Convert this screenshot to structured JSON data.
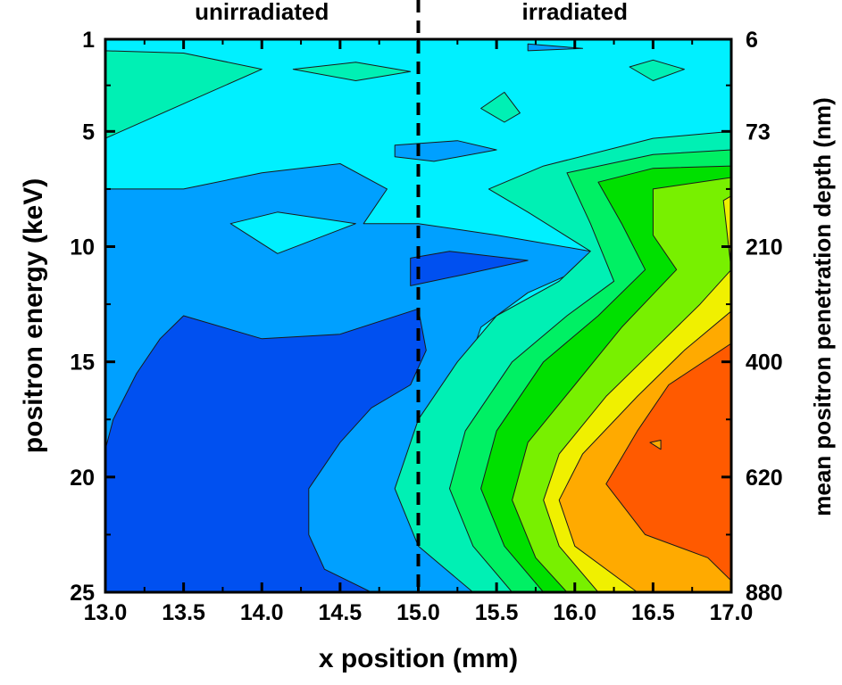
{
  "chart_data": {
    "type": "heatmap",
    "title": "",
    "xlabel": "x position (mm)",
    "ylabel": "positron energy (keV)",
    "y2label": "mean positron penetration depth (nm)",
    "xlim": [
      13.0,
      17.0
    ],
    "ylim": [
      1,
      25
    ],
    "y_axis_inverted": true,
    "x_ticks": [
      "13.0",
      "13.5",
      "14.0",
      "14.5",
      "15.0",
      "15.5",
      "16.0",
      "16.5",
      "17.0"
    ],
    "x_tick_values": [
      13.0,
      13.5,
      14.0,
      14.5,
      15.0,
      15.5,
      16.0,
      16.5,
      17.0
    ],
    "y_ticks": [
      "1",
      "5",
      "10",
      "15",
      "20",
      "25"
    ],
    "y_tick_values": [
      1,
      5,
      10,
      15,
      20,
      25
    ],
    "y2_ticks": [
      "6",
      "73",
      "210",
      "400",
      "620",
      "880"
    ],
    "y2_tick_values": [
      1,
      5,
      10,
      15,
      20,
      25
    ],
    "boundary_x": 15.0,
    "region_labels": [
      {
        "text": "unirradiated",
        "x": 14.0
      },
      {
        "text": "irradiated",
        "x": 16.0
      }
    ],
    "color_levels": [
      {
        "level": 1,
        "color": "#0050f0"
      },
      {
        "level": 2,
        "color": "#00a0ff"
      },
      {
        "level": 3,
        "color": "#00f0ff"
      },
      {
        "level": 4,
        "color": "#00f0b4"
      },
      {
        "level": 5,
        "color": "#00f064"
      },
      {
        "level": 6,
        "color": "#00e000"
      },
      {
        "level": 7,
        "color": "#78f000"
      },
      {
        "level": 8,
        "color": "#f0f000"
      },
      {
        "level": 9,
        "color": "#ffaa00"
      },
      {
        "level": 10,
        "color": "#ff5a00"
      }
    ],
    "contour_regions": [
      {
        "level": 3,
        "polygon": [
          [
            13.0,
            1
          ],
          [
            17.0,
            1
          ],
          [
            17.0,
            25
          ],
          [
            13.0,
            25
          ]
        ]
      },
      {
        "level": 4,
        "polygon": [
          [
            13.0,
            1.5
          ],
          [
            13.5,
            1.6
          ],
          [
            14.0,
            2.3
          ],
          [
            13.5,
            3.8
          ],
          [
            13.0,
            5.3
          ]
        ]
      },
      {
        "level": 4,
        "polygon": [
          [
            14.2,
            2.3
          ],
          [
            14.6,
            2.0
          ],
          [
            14.95,
            2.4
          ],
          [
            14.6,
            2.8
          ]
        ]
      },
      {
        "level": 4,
        "polygon": [
          [
            16.35,
            2.2
          ],
          [
            16.5,
            1.9
          ],
          [
            16.7,
            2.3
          ],
          [
            16.5,
            2.8
          ]
        ]
      },
      {
        "level": 4,
        "polygon": [
          [
            15.4,
            4.0
          ],
          [
            15.55,
            3.3
          ],
          [
            15.65,
            4.2
          ],
          [
            15.55,
            4.6
          ]
        ]
      },
      {
        "level": 2,
        "polygon": [
          [
            15.7,
            1.2
          ],
          [
            16.05,
            1.4
          ],
          [
            15.7,
            1.5
          ]
        ]
      },
      {
        "level": 2,
        "polygon": [
          [
            14.85,
            5.6
          ],
          [
            15.25,
            5.4
          ],
          [
            15.5,
            5.8
          ],
          [
            15.1,
            6.3
          ],
          [
            14.85,
            6.1
          ]
        ]
      },
      {
        "level": 2,
        "polygon": [
          [
            13.0,
            7.5
          ],
          [
            13.5,
            7.5
          ],
          [
            14.0,
            6.8
          ],
          [
            14.5,
            6.4
          ],
          [
            14.8,
            7.5
          ],
          [
            14.65,
            9.0
          ],
          [
            15.0,
            9.0
          ],
          [
            15.5,
            9.5
          ],
          [
            16.1,
            10.2
          ],
          [
            16.2,
            10.5
          ],
          [
            15.7,
            12.0
          ],
          [
            15.4,
            13.5
          ],
          [
            15.3,
            15.5
          ],
          [
            15.1,
            17.5
          ],
          [
            15.0,
            19.0
          ],
          [
            15.1,
            21.5
          ],
          [
            15.3,
            24.0
          ],
          [
            15.5,
            25
          ],
          [
            13.0,
            25
          ]
        ]
      },
      {
        "level": 3,
        "polygon": [
          [
            13.8,
            9.0
          ],
          [
            14.1,
            8.5
          ],
          [
            14.6,
            9.0
          ],
          [
            14.1,
            10.3
          ]
        ]
      },
      {
        "level": 1,
        "polygon": [
          [
            14.95,
            10.5
          ],
          [
            15.2,
            10.2
          ],
          [
            15.7,
            10.6
          ],
          [
            15.3,
            11.2
          ],
          [
            14.95,
            11.7
          ]
        ]
      },
      {
        "level": 1,
        "polygon": [
          [
            13.0,
            18.8
          ],
          [
            13.05,
            17.5
          ],
          [
            13.2,
            15.5
          ],
          [
            13.35,
            14.0
          ],
          [
            13.5,
            13.0
          ],
          [
            14.0,
            14.0
          ],
          [
            14.5,
            13.8
          ],
          [
            15.0,
            12.7
          ],
          [
            15.05,
            14.5
          ],
          [
            14.95,
            16.0
          ],
          [
            14.7,
            17.0
          ],
          [
            14.5,
            18.5
          ],
          [
            14.3,
            20.5
          ],
          [
            14.3,
            22.5
          ],
          [
            14.4,
            24.0
          ],
          [
            14.7,
            25
          ],
          [
            13.0,
            25
          ]
        ]
      },
      {
        "level": 4,
        "polygon": [
          [
            15.45,
            7.5
          ],
          [
            15.8,
            6.5
          ],
          [
            16.5,
            5.3
          ],
          [
            17.0,
            5.0
          ],
          [
            17.0,
            25
          ],
          [
            15.35,
            25
          ],
          [
            15.0,
            23.0
          ],
          [
            14.85,
            20.5
          ],
          [
            15.0,
            17.5
          ],
          [
            15.25,
            15.0
          ],
          [
            15.5,
            13.0
          ],
          [
            15.9,
            11.5
          ],
          [
            16.1,
            10.2
          ],
          [
            15.7,
            8.5
          ]
        ]
      },
      {
        "level": 5,
        "polygon": [
          [
            15.95,
            6.8
          ],
          [
            16.5,
            6.0
          ],
          [
            17.0,
            5.8
          ],
          [
            17.0,
            25
          ],
          [
            15.6,
            25
          ],
          [
            15.35,
            23.0
          ],
          [
            15.2,
            20.5
          ],
          [
            15.3,
            18.0
          ],
          [
            15.6,
            15.0
          ],
          [
            15.95,
            13.0
          ],
          [
            16.25,
            11.5
          ],
          [
            16.1,
            9.0
          ]
        ]
      },
      {
        "level": 6,
        "polygon": [
          [
            16.15,
            7.2
          ],
          [
            16.5,
            6.6
          ],
          [
            17.0,
            6.5
          ],
          [
            17.0,
            25
          ],
          [
            15.8,
            25
          ],
          [
            15.55,
            23.0
          ],
          [
            15.4,
            20.5
          ],
          [
            15.5,
            18.0
          ],
          [
            15.8,
            15.0
          ],
          [
            16.15,
            13.0
          ],
          [
            16.45,
            11.0
          ],
          [
            16.3,
            9.0
          ]
        ]
      },
      {
        "level": 7,
        "polygon": [
          [
            16.5,
            7.5
          ],
          [
            17.0,
            7.0
          ],
          [
            17.0,
            25
          ],
          [
            15.95,
            25
          ],
          [
            15.75,
            23.5
          ],
          [
            15.6,
            21.0
          ],
          [
            15.7,
            18.5
          ],
          [
            16.0,
            16.0
          ],
          [
            16.3,
            13.5
          ],
          [
            16.65,
            11.0
          ],
          [
            16.5,
            9.5
          ]
        ]
      },
      {
        "level": 8,
        "polygon": [
          [
            16.95,
            8.0
          ],
          [
            17.0,
            7.8
          ],
          [
            17.0,
            25
          ],
          [
            16.15,
            25
          ],
          [
            15.9,
            23.0
          ],
          [
            15.8,
            21.0
          ],
          [
            15.9,
            19.0
          ],
          [
            16.2,
            16.5
          ],
          [
            16.5,
            14.5
          ],
          [
            16.8,
            12.5
          ],
          [
            17.0,
            11.0
          ]
        ]
      },
      {
        "level": 9,
        "polygon": [
          [
            17.0,
            12.8
          ],
          [
            17.0,
            25
          ],
          [
            16.4,
            25
          ],
          [
            16.0,
            23.0
          ],
          [
            15.9,
            21.0
          ],
          [
            16.05,
            19.0
          ],
          [
            16.4,
            16.5
          ],
          [
            16.7,
            14.5
          ]
        ]
      },
      {
        "level": 10,
        "polygon": [
          [
            17.0,
            14.2
          ],
          [
            17.0,
            24.5
          ],
          [
            16.85,
            23.5
          ],
          [
            16.45,
            22.5
          ],
          [
            16.2,
            20.3
          ],
          [
            16.4,
            18.0
          ],
          [
            16.6,
            16.0
          ]
        ]
      },
      {
        "level": 9,
        "polygon": [
          [
            16.48,
            18.5
          ],
          [
            16.55,
            18.4
          ],
          [
            16.55,
            18.8
          ]
        ]
      }
    ]
  }
}
